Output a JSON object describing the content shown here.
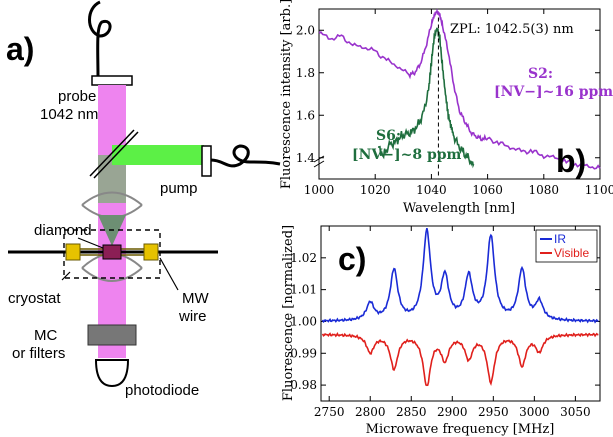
{
  "panel_a": {
    "label": "a)",
    "probe": "probe",
    "probe_wl": "1042 nm",
    "pump": "pump",
    "diamond": "diamond",
    "cryostat": "cryostat",
    "mw1": "MW",
    "mw2": "wire",
    "mc1": "MC",
    "mc2": "or filters",
    "photodiode": "photodiode"
  },
  "chart_data": [
    {
      "type": "line",
      "panel_label": "b)",
      "xlabel": "Wavelength [nm]",
      "ylabel": "Fluorescence intensity [arb.]",
      "xlim": [
        1000,
        1100
      ],
      "ylim": [
        1.3,
        2.1
      ],
      "xticks": [
        "1000",
        "1020",
        "1040",
        "1060",
        "1080",
        "1100"
      ],
      "yticks": [
        "1.4",
        "1.6",
        "1.8",
        "2.0"
      ],
      "annotation": "ZPL: 1042.5(3) nm",
      "s2_label": "S2:",
      "s2_conc": "[NV−]~16 ppm",
      "s6_label": "S6:",
      "s6_conc": "[NV−]~8 ppm",
      "series": [
        {
          "name": "S2",
          "color": "#9933cc",
          "x": [
            1000,
            1004,
            1008,
            1012,
            1016,
            1020,
            1024,
            1028,
            1032,
            1034,
            1036,
            1038,
            1040,
            1041,
            1042,
            1043,
            1044,
            1046,
            1048,
            1050,
            1052,
            1054,
            1056,
            1058,
            1060,
            1064,
            1068,
            1072,
            1076,
            1080,
            1084,
            1088,
            1092,
            1096,
            1100
          ],
          "y": [
            1.99,
            1.96,
            1.97,
            1.93,
            1.92,
            1.9,
            1.86,
            1.83,
            1.79,
            1.8,
            1.84,
            1.92,
            2.03,
            2.07,
            2.09,
            2.07,
            2.02,
            1.9,
            1.74,
            1.62,
            1.57,
            1.52,
            1.5,
            1.49,
            1.49,
            1.47,
            1.45,
            1.43,
            1.43,
            1.41,
            1.4,
            1.38,
            1.37,
            1.36,
            1.35
          ]
        },
        {
          "name": "S6",
          "color": "#1f6e3e",
          "x": [
            1021,
            1023,
            1025,
            1027,
            1029,
            1031,
            1033,
            1035,
            1037,
            1039,
            1040,
            1041,
            1042,
            1043,
            1044,
            1045,
            1046,
            1047,
            1048,
            1050,
            1052,
            1054,
            1055
          ],
          "y": [
            1.45,
            1.41,
            1.46,
            1.47,
            1.5,
            1.51,
            1.52,
            1.55,
            1.6,
            1.72,
            1.85,
            1.97,
            2.01,
            1.96,
            1.82,
            1.7,
            1.6,
            1.55,
            1.5,
            1.45,
            1.42,
            1.38,
            1.37
          ]
        }
      ],
      "marker_x": 1042.5
    },
    {
      "type": "line",
      "panel_label": "c)",
      "xlabel": "Microwave frequency [MHz]",
      "ylabel": "Fluorescence [normalized]",
      "xlim": [
        2740,
        3080
      ],
      "ylim": [
        0.975,
        1.03
      ],
      "xticks": [
        "2750",
        "2800",
        "2850",
        "2900",
        "2950",
        "3000",
        "3050"
      ],
      "yticks": [
        "0.98",
        "0.99",
        "1.00",
        "1.01",
        "1.02"
      ],
      "legend": "top-right",
      "series": [
        {
          "name": "IR",
          "color": "#1a2bd6",
          "baseline": 1.0,
          "peaks": [
            [
              2800,
              0.0055
            ],
            [
              2829,
              0.0158
            ],
            [
              2869,
              0.0275
            ],
            [
              2891,
              0.0133
            ],
            [
              2920,
              0.0135
            ],
            [
              2947,
              0.0262
            ],
            [
              2985,
              0.0158
            ],
            [
              3006,
              0.0058
            ]
          ]
        },
        {
          "name": "Visible",
          "color": "#e0201c",
          "baseline": 0.996,
          "peaks": [
            [
              2800,
              -0.0055
            ],
            [
              2829,
              -0.0105
            ],
            [
              2869,
              -0.0156
            ],
            [
              2891,
              -0.0075
            ],
            [
              2920,
              -0.0072
            ],
            [
              2947,
              -0.0145
            ],
            [
              2985,
              -0.0095
            ],
            [
              3006,
              -0.005
            ]
          ]
        }
      ]
    }
  ]
}
